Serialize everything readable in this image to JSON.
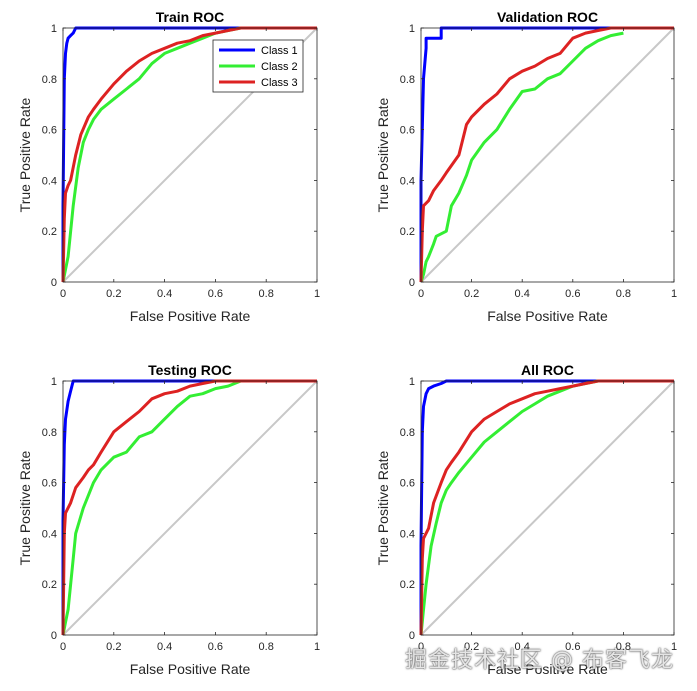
{
  "chart_data": [
    {
      "type": "line",
      "title": "Train ROC",
      "xlabel": "False Positive Rate",
      "ylabel": "True Positive Rate",
      "xlim": [
        0,
        1
      ],
      "ylim": [
        0,
        1
      ],
      "xticks": [
        "0",
        "0.2",
        "0.4",
        "0.6",
        "0.8",
        "1"
      ],
      "yticks": [
        "0",
        "0.2",
        "0.4",
        "0.6",
        "0.8",
        "1"
      ],
      "grid": false,
      "legend": "top-right",
      "series": [
        {
          "name": "Class 1",
          "color": "#0000ff",
          "x": [
            0,
            0,
            0.005,
            0.01,
            0.015,
            0.02,
            0.03,
            0.04,
            0.05,
            1
          ],
          "y": [
            0,
            0.3,
            0.8,
            0.9,
            0.94,
            0.96,
            0.97,
            0.98,
            1.0,
            1.0
          ]
        },
        {
          "name": "Class 2",
          "color": "#33ee33",
          "x": [
            0,
            0.02,
            0.04,
            0.06,
            0.08,
            0.1,
            0.12,
            0.15,
            0.2,
            0.25,
            0.3,
            0.35,
            0.4,
            0.45,
            0.5,
            0.55,
            0.6,
            0.65,
            0.7,
            0.8,
            1
          ],
          "y": [
            0,
            0.1,
            0.3,
            0.45,
            0.55,
            0.6,
            0.64,
            0.68,
            0.72,
            0.76,
            0.8,
            0.86,
            0.9,
            0.92,
            0.94,
            0.96,
            0.98,
            0.99,
            1.0,
            1.0,
            1.0
          ]
        },
        {
          "name": "Class 3",
          "color": "#dd2222",
          "x": [
            0,
            0.005,
            0.01,
            0.02,
            0.03,
            0.05,
            0.07,
            0.1,
            0.12,
            0.15,
            0.2,
            0.25,
            0.3,
            0.35,
            0.4,
            0.45,
            0.5,
            0.55,
            0.6,
            0.65,
            0.7,
            0.8,
            1
          ],
          "y": [
            0,
            0.25,
            0.35,
            0.38,
            0.4,
            0.5,
            0.58,
            0.65,
            0.68,
            0.72,
            0.78,
            0.83,
            0.87,
            0.9,
            0.92,
            0.94,
            0.95,
            0.97,
            0.98,
            0.99,
            1.0,
            1.0,
            1.0
          ]
        }
      ]
    },
    {
      "type": "line",
      "title": "Validation ROC",
      "xlabel": "False Positive Rate",
      "ylabel": "True Positive Rate",
      "xlim": [
        0,
        1
      ],
      "ylim": [
        0,
        1
      ],
      "xticks": [
        "0",
        "0.2",
        "0.4",
        "0.6",
        "0.8",
        "1"
      ],
      "yticks": [
        "0",
        "0.2",
        "0.4",
        "0.6",
        "0.8",
        "1"
      ],
      "grid": false,
      "series": [
        {
          "name": "Class 1",
          "color": "#0000ff",
          "x": [
            0,
            0,
            0.01,
            0.02,
            0.02,
            0.08,
            0.08,
            1
          ],
          "y": [
            0,
            0.4,
            0.8,
            0.92,
            0.96,
            0.96,
            1.0,
            1.0
          ]
        },
        {
          "name": "Class 2",
          "color": "#33ee33",
          "x": [
            0,
            0.01,
            0.02,
            0.03,
            0.05,
            0.06,
            0.1,
            0.12,
            0.15,
            0.18,
            0.2,
            0.25,
            0.3,
            0.35,
            0.4,
            0.45,
            0.5,
            0.55,
            0.6,
            0.65,
            0.7,
            0.75,
            0.8
          ],
          "y": [
            0,
            0.03,
            0.08,
            0.1,
            0.15,
            0.18,
            0.2,
            0.3,
            0.35,
            0.42,
            0.48,
            0.55,
            0.6,
            0.68,
            0.75,
            0.76,
            0.8,
            0.82,
            0.87,
            0.92,
            0.95,
            0.97,
            0.98
          ]
        },
        {
          "name": "Class 3",
          "color": "#dd2222",
          "x": [
            0,
            0.005,
            0.01,
            0.03,
            0.05,
            0.08,
            0.1,
            0.15,
            0.18,
            0.2,
            0.25,
            0.3,
            0.35,
            0.4,
            0.45,
            0.5,
            0.55,
            0.6,
            0.65,
            0.7,
            0.75,
            0.8,
            1
          ],
          "y": [
            0,
            0.2,
            0.3,
            0.32,
            0.36,
            0.4,
            0.43,
            0.5,
            0.62,
            0.65,
            0.7,
            0.74,
            0.8,
            0.83,
            0.85,
            0.88,
            0.9,
            0.96,
            0.98,
            0.99,
            1.0,
            1.0,
            1.0
          ]
        }
      ]
    },
    {
      "type": "line",
      "title": "Testing ROC",
      "xlabel": "False Positive Rate",
      "ylabel": "True Positive Rate",
      "xlim": [
        0,
        1
      ],
      "ylim": [
        0,
        1
      ],
      "xticks": [
        "0",
        "0.2",
        "0.4",
        "0.6",
        "0.8",
        "1"
      ],
      "yticks": [
        "0",
        "0.2",
        "0.4",
        "0.6",
        "0.8",
        "1"
      ],
      "grid": false,
      "series": [
        {
          "name": "Class 1",
          "color": "#0000ff",
          "x": [
            0,
            0,
            0.005,
            0.01,
            0.02,
            0.03,
            0.04,
            1
          ],
          "y": [
            0,
            0.45,
            0.75,
            0.85,
            0.92,
            0.96,
            1.0,
            1.0
          ]
        },
        {
          "name": "Class 2",
          "color": "#33ee33",
          "x": [
            0,
            0.01,
            0.02,
            0.04,
            0.05,
            0.08,
            0.1,
            0.12,
            0.15,
            0.2,
            0.25,
            0.3,
            0.35,
            0.4,
            0.45,
            0.5,
            0.55,
            0.6,
            0.65,
            0.7,
            0.8,
            1
          ],
          "y": [
            0,
            0.05,
            0.1,
            0.3,
            0.4,
            0.5,
            0.55,
            0.6,
            0.65,
            0.7,
            0.72,
            0.78,
            0.8,
            0.85,
            0.9,
            0.94,
            0.95,
            0.97,
            0.98,
            1.0,
            1.0,
            1.0
          ]
        },
        {
          "name": "Class 3",
          "color": "#dd2222",
          "x": [
            0,
            0.005,
            0.01,
            0.03,
            0.05,
            0.08,
            0.1,
            0.12,
            0.15,
            0.2,
            0.25,
            0.3,
            0.35,
            0.4,
            0.45,
            0.5,
            0.55,
            0.6,
            0.7,
            0.8,
            1
          ],
          "y": [
            0,
            0.4,
            0.48,
            0.52,
            0.58,
            0.62,
            0.65,
            0.67,
            0.72,
            0.8,
            0.84,
            0.88,
            0.93,
            0.95,
            0.96,
            0.98,
            0.99,
            1.0,
            1.0,
            1.0,
            1.0
          ]
        }
      ]
    },
    {
      "type": "line",
      "title": "All ROC",
      "xlabel": "False Positive Rate",
      "ylabel": "True Positive Rate",
      "xlim": [
        0,
        1
      ],
      "ylim": [
        0,
        1
      ],
      "xticks": [
        "0",
        "0.2",
        "0.4",
        "0.6",
        "0.8",
        "1"
      ],
      "yticks": [
        "0",
        "0.2",
        "0.4",
        "0.6",
        "0.8",
        "1"
      ],
      "grid": false,
      "series": [
        {
          "name": "Class 1",
          "color": "#0000ff",
          "x": [
            0,
            0,
            0.005,
            0.01,
            0.02,
            0.03,
            0.05,
            0.08,
            0.1,
            1
          ],
          "y": [
            0,
            0.35,
            0.8,
            0.9,
            0.95,
            0.97,
            0.98,
            0.99,
            1.0,
            1.0
          ]
        },
        {
          "name": "Class 2",
          "color": "#33ee33",
          "x": [
            0,
            0.01,
            0.02,
            0.04,
            0.06,
            0.08,
            0.1,
            0.12,
            0.15,
            0.2,
            0.25,
            0.3,
            0.35,
            0.4,
            0.45,
            0.5,
            0.55,
            0.6,
            0.65,
            0.7,
            0.8,
            1
          ],
          "y": [
            0,
            0.1,
            0.2,
            0.35,
            0.44,
            0.52,
            0.57,
            0.6,
            0.64,
            0.7,
            0.76,
            0.8,
            0.84,
            0.88,
            0.91,
            0.94,
            0.96,
            0.98,
            0.99,
            1.0,
            1.0,
            1.0
          ]
        },
        {
          "name": "Class 3",
          "color": "#dd2222",
          "x": [
            0,
            0.005,
            0.01,
            0.03,
            0.05,
            0.08,
            0.1,
            0.12,
            0.15,
            0.2,
            0.25,
            0.3,
            0.35,
            0.4,
            0.45,
            0.5,
            0.55,
            0.6,
            0.65,
            0.7,
            0.8,
            1
          ],
          "y": [
            0,
            0.3,
            0.38,
            0.42,
            0.52,
            0.6,
            0.65,
            0.68,
            0.72,
            0.8,
            0.85,
            0.88,
            0.91,
            0.93,
            0.95,
            0.96,
            0.97,
            0.98,
            0.99,
            1.0,
            1.0,
            1.0
          ]
        }
      ]
    }
  ],
  "watermark": "掘金技术社区 @ 布客飞龙"
}
